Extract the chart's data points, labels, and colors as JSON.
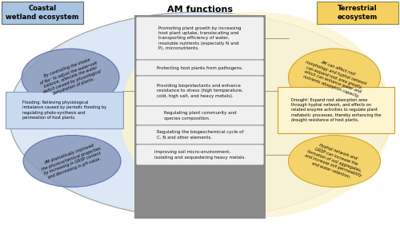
{
  "title": "AM functions",
  "left_title": "Coastal\nwetland ecosystem",
  "right_title": "Terrestrial\necosystem",
  "center_boxes": [
    "Promoting plant growth by increasing\nhost plant uptake, translocating and\ntransporting efficiency of water,\ninsoluble nutrients (especially N and\nP), micronutrients.",
    "Protecting host plants from pathogens.",
    "Providing bioprotectants and enhance\nresistance to stress (high temperature,\ncold, high salt, and heavy metals).",
    "Regulating plant community and\nspecies composition.",
    "Regulating the biogeochemical cycle of\nC, N and other elements.",
    "Improving soil micro-environment,\nisolating and sequestering heavy metals."
  ],
  "left_ellipse1_text": "By controlling the intake\nof Na⁺ to adjust the water-salt\nbalance, alleviate the water\ndeficit caused by physiological\ndehydration of plants.",
  "left_ellipse2_text": "AM dramatically improved\nthe physicochemical properties\nby increasing in GRSP content\nand decreasing in pH value.",
  "left_rect_text": "Flooding: Relieving physiological\nimbalance caused by periodic flooding by\nregulating photo-synthesis and\npermeation of host plants.",
  "right_ellipse1_text": "AM can affect root\nmorphology and hyphal network\ncan expand root area greatly,\nwhich can enhance water and\nnutrients absorption capacity.",
  "right_ellipse2_text": "Hyphal network and\nGRSP can increase the\nformation of soil aggregates,\nand increase soil permeability\nand water retention.",
  "right_rect_text": "Drought: Expand root absorption area\nthrough hyphal network, and effects on\nrelated enzyme activities to regulate plant\nmetabolic processes, thereby enhancing the\ndrought resistance of host plants.",
  "bg_color": "#ffffff",
  "outer_ellipse_fill": "#dce8f5",
  "outer_ellipse_edge": "#aaaaaa",
  "right_half_fill": "#fdf4d0",
  "left_title_bg": "#a8c4e0",
  "right_title_bg": "#f5d060",
  "center_col_bg": "#8a8a8a",
  "center_box_fill": "#f0f0f0",
  "center_box_edge": "#888888",
  "center_box_text": "#111111",
  "left_ellipse_fill": "#8899bb",
  "left_ellipse_edge": "#5566aa",
  "left_rect_fill": "#c8daf0",
  "left_rect_edge": "#8899bb",
  "right_ellipse_fill": "#f5d060",
  "right_ellipse_edge": "#c8a020",
  "right_rect_fill": "#fdf4d0",
  "right_rect_edge": "#c8a020",
  "line_color": "#888888"
}
